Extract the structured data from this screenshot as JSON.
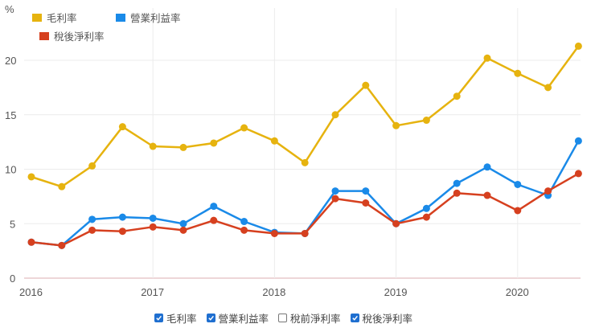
{
  "chart_data": {
    "type": "line",
    "title": "",
    "xlabel": "",
    "ylabel": "%",
    "ylim": [
      0,
      22
    ],
    "yticks": [
      0,
      5,
      10,
      15,
      20
    ],
    "xticks": [
      "2016",
      "2017",
      "2018",
      "2019",
      "2020"
    ],
    "grid": true,
    "legend_position": "top-left",
    "x": [
      "2016Q1",
      "2016Q2",
      "2016Q3",
      "2016Q4",
      "2017Q1",
      "2017Q2",
      "2017Q3",
      "2017Q4",
      "2018Q1",
      "2018Q2",
      "2018Q3",
      "2018Q4",
      "2019Q1",
      "2019Q2",
      "2019Q3",
      "2019Q4",
      "2020Q1",
      "2020Q2",
      "2020Q3"
    ],
    "series": [
      {
        "name": "毛利率",
        "color": "#e6b30f",
        "values": [
          9.3,
          8.4,
          10.3,
          13.9,
          12.1,
          12.0,
          12.4,
          13.8,
          12.6,
          10.6,
          15.0,
          17.7,
          14.0,
          14.5,
          16.7,
          20.2,
          18.8,
          17.5,
          21.3
        ]
      },
      {
        "name": "營業利益率",
        "color": "#1a8ae8",
        "values": [
          3.3,
          3.0,
          5.4,
          5.6,
          5.5,
          5.0,
          6.6,
          5.2,
          4.2,
          4.1,
          8.0,
          8.0,
          5.0,
          6.4,
          8.7,
          10.2,
          8.6,
          7.6,
          12.6
        ]
      },
      {
        "name": "稅後淨利率",
        "color": "#d6401f",
        "values": [
          3.3,
          3.0,
          4.4,
          4.3,
          4.7,
          4.4,
          5.3,
          4.4,
          4.1,
          4.1,
          7.3,
          6.9,
          5.0,
          5.6,
          7.8,
          7.6,
          6.2,
          8.0,
          9.6
        ]
      }
    ]
  },
  "y_unit": "%",
  "legend": [
    {
      "label": "毛利率",
      "color": "#e6b30f"
    },
    {
      "label": "營業利益率",
      "color": "#1a8ae8"
    },
    {
      "label": "稅後淨利率",
      "color": "#d6401f"
    }
  ],
  "toggles": [
    {
      "label": "毛利率",
      "checked": true
    },
    {
      "label": "營業利益率",
      "checked": true
    },
    {
      "label": "稅前淨利率",
      "checked": false
    },
    {
      "label": "稅後淨利率",
      "checked": true
    }
  ]
}
